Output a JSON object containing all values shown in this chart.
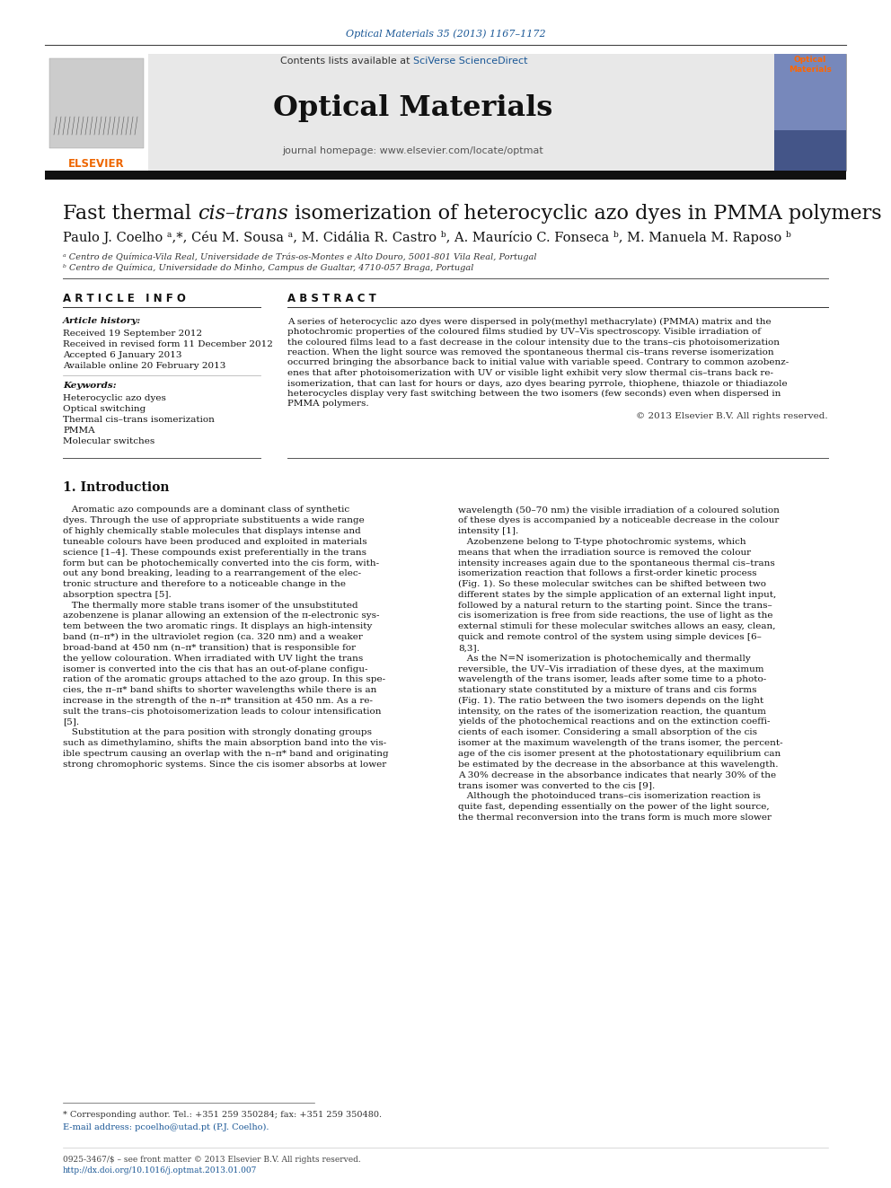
{
  "journal_ref": "Optical Materials 35 (2013) 1167–1172",
  "journal_ref_color": "#1a5796",
  "contents_line": "Contents lists available at ",
  "sciverse_text": "SciVerse ScienceDirect",
  "sciverse_color": "#1a5796",
  "journal_name": "Optical Materials",
  "journal_homepage": "journal homepage: www.elsevier.com/locate/optmat",
  "authors_line": "Paulo J. Coelhoᵃ,*, Céu M. Sousaᵃ, M. Cidália R. Castroᵇ, A. Maurício C. Fonsecaᵇ, M. Manuela M. Raposoᵇ",
  "affil_a": "ᵃ Centro de Química-Vila Real, Universidade de Trás-os-Montes e Alto Douro, 5001-801 Vila Real, Portugal",
  "affil_b": "ᵇ Centro de Química, Universidade do Minho, Campus de Gualtar, 4710-057 Braga, Portugal",
  "article_info_title": "A R T I C L E   I N F O",
  "abstract_title": "A B S T R A C T",
  "article_history_label": "Article history:",
  "received1": "Received 19 September 2012",
  "received2": "Received in revised form 11 December 2012",
  "accepted": "Accepted 6 January 2013",
  "available": "Available online 20 February 2013",
  "keywords_label": "Keywords:",
  "keywords": [
    "Heterocyclic azo dyes",
    "Optical switching",
    "Thermal cis–trans isomerization",
    "PMMA",
    "Molecular switches"
  ],
  "copyright": "© 2013 Elsevier B.V. All rights reserved.",
  "section1_title": "1. Introduction",
  "intro_left": [
    "   Aromatic azo compounds are a dominant class of synthetic",
    "dyes. Through the use of appropriate substituents a wide range",
    "of highly chemically stable molecules that displays intense and",
    "tuneable colours have been produced and exploited in materials",
    "science [1–4]. These compounds exist preferentially in the trans",
    "form but can be photochemically converted into the cis form, with-",
    "out any bond breaking, leading to a rearrangement of the elec-",
    "tronic structure and therefore to a noticeable change in the",
    "absorption spectra [5].",
    "   The thermally more stable trans isomer of the unsubstituted",
    "azobenzene is planar allowing an extension of the π-electronic sys-",
    "tem between the two aromatic rings. It displays an high-intensity",
    "band (π–π*) in the ultraviolet region (ca. 320 nm) and a weaker",
    "broad-band at 450 nm (n–π* transition) that is responsible for",
    "the yellow colouration. When irradiated with UV light the trans",
    "isomer is converted into the cis that has an out-of-plane configu-",
    "ration of the aromatic groups attached to the azo group. In this spe-",
    "cies, the π–π* band shifts to shorter wavelengths while there is an",
    "increase in the strength of the n–π* transition at 450 nm. As a re-",
    "sult the trans–cis photoisomerization leads to colour intensification",
    "[5].",
    "   Substitution at the para position with strongly donating groups",
    "such as dimethylamino, shifts the main absorption band into the vis-",
    "ible spectrum causing an overlap with the n–π* band and originating",
    "strong chromophoric systems. Since the cis isomer absorbs at lower"
  ],
  "intro_right": [
    "wavelength (50–70 nm) the visible irradiation of a coloured solution",
    "of these dyes is accompanied by a noticeable decrease in the colour",
    "intensity [1].",
    "   Azobenzene belong to T-type photochromic systems, which",
    "means that when the irradiation source is removed the colour",
    "intensity increases again due to the spontaneous thermal cis–trans",
    "isomerization reaction that follows a first-order kinetic process",
    "(Fig. 1). So these molecular switches can be shifted between two",
    "different states by the simple application of an external light input,",
    "followed by a natural return to the starting point. Since the trans–",
    "cis isomerization is free from side reactions, the use of light as the",
    "external stimuli for these molecular switches allows an easy, clean,",
    "quick and remote control of the system using simple devices [6–",
    "8,3].",
    "   As the N=N isomerization is photochemically and thermally",
    "reversible, the UV–Vis irradiation of these dyes, at the maximum",
    "wavelength of the trans isomer, leads after some time to a photo-",
    "stationary state constituted by a mixture of trans and cis forms",
    "(Fig. 1). The ratio between the two isomers depends on the light",
    "intensity, on the rates of the isomerization reaction, the quantum",
    "yields of the photochemical reactions and on the extinction coeffi-",
    "cients of each isomer. Considering a small absorption of the cis",
    "isomer at the maximum wavelength of the trans isomer, the percent-",
    "age of the cis isomer present at the photostationary equilibrium can",
    "be estimated by the decrease in the absorbance at this wavelength.",
    "A 30% decrease in the absorbance indicates that nearly 30% of the",
    "trans isomer was converted to the cis [9].",
    "   Although the photoinduced trans–cis isomerization reaction is",
    "quite fast, depending essentially on the power of the light source,",
    "the thermal reconversion into the trans form is much more slower"
  ],
  "abstract_lines": [
    "A series of heterocyclic azo dyes were dispersed in poly(methyl methacrylate) (PMMA) matrix and the",
    "photochromic properties of the coloured films studied by UV–Vis spectroscopy. Visible irradiation of",
    "the coloured films lead to a fast decrease in the colour intensity due to the trans–cis photoisomerization",
    "reaction. When the light source was removed the spontaneous thermal cis–trans reverse isomerization",
    "occurred bringing the absorbance back to initial value with variable speed. Contrary to common azobenz-",
    "enes that after photoisomerization with UV or visible light exhibit very slow thermal cis–trans back re-",
    "isomerization, that can last for hours or days, azo dyes bearing pyrrole, thiophene, thiazole or thiadiazole",
    "heterocycles display very fast switching between the two isomers (few seconds) even when dispersed in",
    "PMMA polymers."
  ],
  "footnote_star": "* Corresponding author. Tel.: +351 259 350284; fax: +351 259 350480.",
  "footnote_email": "E-mail address: pcoelho@utad.pt (P.J. Coelho).",
  "footer_issn": "0925-3467/$ – see front matter © 2013 Elsevier B.V. All rights reserved.",
  "footer_doi": "http://dx.doi.org/10.1016/j.optmat.2013.01.007",
  "bg_color": "#ffffff",
  "elsevier_color": "#ee6600",
  "dark_bar_color": "#111111",
  "link_color": "#1a5796",
  "text_color": "#000000",
  "gray_text": "#333333"
}
